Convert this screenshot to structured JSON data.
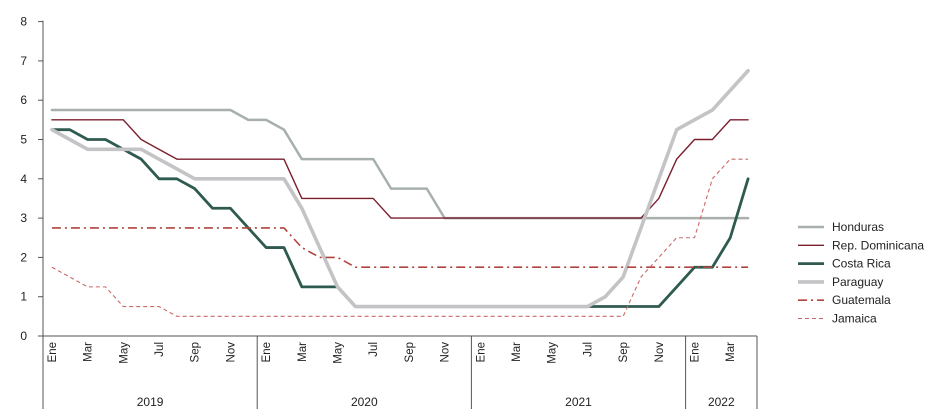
{
  "chart_data": {
    "type": "line",
    "title": "",
    "ylabel": "",
    "ylim": [
      0,
      8
    ],
    "yticks": [
      0,
      1,
      2,
      3,
      4,
      5,
      6,
      7,
      8
    ],
    "grid": false,
    "legend_position": "right",
    "month_labels": [
      "Ene",
      "Mar",
      "May",
      "Jul",
      "Sep",
      "Nov",
      "Ene",
      "Mar",
      "May",
      "Jul",
      "Sep",
      "Nov",
      "Ene",
      "Mar",
      "May",
      "Jul",
      "Sep",
      "Nov",
      "Ene",
      "Mar"
    ],
    "years": [
      "2019",
      "2020",
      "2021",
      "2022"
    ],
    "x_dates": [
      "2019-01",
      "2019-02",
      "2019-03",
      "2019-04",
      "2019-05",
      "2019-06",
      "2019-07",
      "2019-08",
      "2019-09",
      "2019-10",
      "2019-11",
      "2019-12",
      "2020-01",
      "2020-02",
      "2020-03",
      "2020-04",
      "2020-05",
      "2020-06",
      "2020-07",
      "2020-08",
      "2020-09",
      "2020-10",
      "2020-11",
      "2020-12",
      "2021-01",
      "2021-02",
      "2021-03",
      "2021-04",
      "2021-05",
      "2021-06",
      "2021-07",
      "2021-08",
      "2021-09",
      "2021-10",
      "2021-11",
      "2021-12",
      "2022-01",
      "2022-02",
      "2022-03",
      "2022-04"
    ],
    "series": [
      {
        "name": "Honduras",
        "color": "#a8b0ab",
        "style": "solid",
        "values": [
          5.75,
          5.75,
          5.75,
          5.75,
          5.75,
          5.75,
          5.75,
          5.75,
          5.75,
          5.75,
          5.75,
          5.5,
          5.5,
          5.25,
          4.5,
          4.5,
          4.5,
          4.5,
          4.5,
          3.75,
          3.75,
          3.75,
          3,
          3,
          3,
          3,
          3,
          3,
          3,
          3,
          3,
          3,
          3,
          3,
          3,
          3,
          3,
          3,
          3,
          3
        ]
      },
      {
        "name": "Rep. Dominicana",
        "color": "#7a1f2e",
        "style": "solid",
        "values": [
          5.5,
          5.5,
          5.5,
          5.5,
          5.5,
          5,
          4.75,
          4.5,
          4.5,
          4.5,
          4.5,
          4.5,
          4.5,
          4.5,
          3.5,
          3.5,
          3.5,
          3.5,
          3.5,
          3,
          3,
          3,
          3,
          3,
          3,
          3,
          3,
          3,
          3,
          3,
          3,
          3,
          3,
          3,
          3.5,
          4.5,
          5,
          5,
          5.5,
          5.5
        ]
      },
      {
        "name": "Costa Rica",
        "color": "#2f5a50",
        "style": "solid",
        "values": [
          5.25,
          5.25,
          5,
          5,
          4.75,
          4.5,
          4,
          4,
          3.75,
          3.25,
          3.25,
          2.75,
          2.25,
          2.25,
          1.25,
          1.25,
          1.25,
          null,
          0.75,
          0.75,
          0.75,
          0.75,
          0.75,
          0.75,
          0.75,
          0.75,
          0.75,
          0.75,
          0.75,
          0.75,
          0.75,
          0.75,
          0.75,
          0.75,
          0.75,
          1.25,
          1.75,
          1.75,
          2.5,
          4
        ]
      },
      {
        "name": "Paraguay",
        "color": "#c4c4c7",
        "style": "solid",
        "values": [
          5.25,
          5,
          4.75,
          4.75,
          4.75,
          4.75,
          4.5,
          4.25,
          4,
          4,
          4,
          4,
          4,
          4,
          3.25,
          2.25,
          1.25,
          0.75,
          0.75,
          0.75,
          0.75,
          0.75,
          0.75,
          0.75,
          0.75,
          0.75,
          0.75,
          0.75,
          0.75,
          0.75,
          0.75,
          1,
          1.5,
          2.75,
          4,
          5.25,
          5.5,
          5.75,
          6.25,
          6.75
        ]
      },
      {
        "name": "Guatemala",
        "color": "#b0443f",
        "style": "dashdot",
        "values": [
          2.75,
          2.75,
          2.75,
          2.75,
          2.75,
          2.75,
          2.75,
          2.75,
          2.75,
          2.75,
          2.75,
          2.75,
          2.75,
          2.75,
          2.25,
          2,
          2,
          1.75,
          1.75,
          1.75,
          1.75,
          1.75,
          1.75,
          1.75,
          1.75,
          1.75,
          1.75,
          1.75,
          1.75,
          1.75,
          1.75,
          1.75,
          1.75,
          1.75,
          1.75,
          1.75,
          1.75,
          1.75,
          1.75,
          1.75
        ]
      },
      {
        "name": "Jamaica",
        "color": "#c96a6a",
        "style": "dashed",
        "values": [
          1.75,
          1.5,
          1.25,
          1.25,
          0.75,
          0.75,
          0.75,
          0.5,
          0.5,
          0.5,
          0.5,
          0.5,
          0.5,
          0.5,
          0.5,
          0.5,
          0.5,
          0.5,
          0.5,
          0.5,
          0.5,
          0.5,
          0.5,
          0.5,
          0.5,
          0.5,
          0.5,
          0.5,
          0.5,
          0.5,
          0.5,
          0.5,
          0.5,
          1.5,
          2,
          2.5,
          2.5,
          4,
          4.5,
          4.5
        ]
      }
    ]
  }
}
